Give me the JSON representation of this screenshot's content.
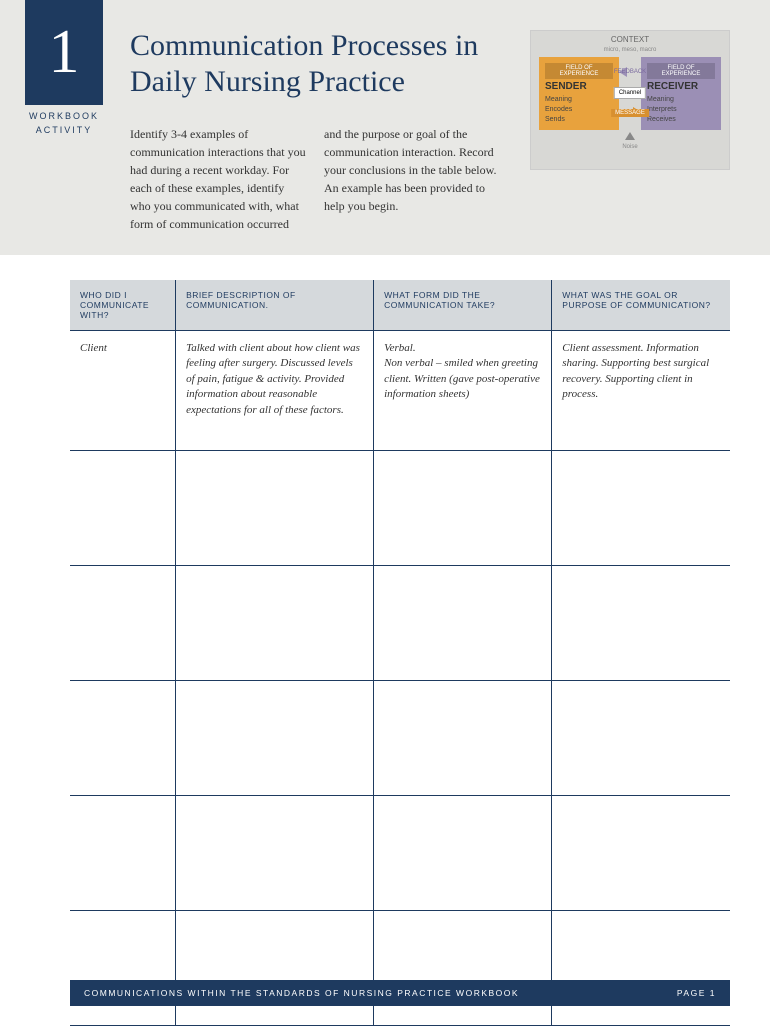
{
  "header": {
    "number": "1",
    "workbook_label_line1": "WORKBOOK",
    "workbook_label_line2": "ACTIVITY",
    "title": "Communication Processes in Daily Nursing Practice",
    "intro": "Identify 3-4 examples of communication interactions that you had during a recent workday. For each of these examples, identify who you communicated with, what form of communication occurred and the purpose or goal of the communication interaction. Record your conclusions in the table below. An example has been provided to help you begin."
  },
  "diagram": {
    "context": "CONTEXT",
    "context_sub": "micro, meso, macro",
    "sender_header": "FIELD OF EXPERIENCE",
    "sender_title": "SENDER",
    "sender_items": "Meaning\nEncodes\nSends",
    "receiver_header": "FIELD OF EXPERIENCE",
    "receiver_title": "RECEIVER",
    "receiver_items": "Meaning\nInterprets\nReceives",
    "feedback": "FEEDBACK",
    "channel": "Channel",
    "message": "MESSAGE",
    "noise": "Noise",
    "colors": {
      "sender_bg": "#e8a23d",
      "receiver_bg": "#9b8fb5",
      "diagram_bg": "#d8d8d5",
      "message_bg": "#d89030"
    }
  },
  "table": {
    "headers": {
      "col1": "WHO DID I COMMUNICATE WITH?",
      "col2": "BRIEF DESCRIPTION OF COMMUNICATION.",
      "col3": "WHAT FORM DID THE COMMUNICATION TAKE?",
      "col4": "WHAT WAS THE GOAL OR PURPOSE OF COMMUNICATION?"
    },
    "example_row": {
      "col1": "Client",
      "col2": "Talked with client about how client was feeling after surgery. Discussed levels of pain, fatigue & activity. Provided information about reasonable expectations for all of these factors.",
      "col3": "Verbal.\nNon verbal – smiled when greeting client. Written (gave post-operative information sheets)",
      "col4": "Client assessment. Information sharing. Supporting best surgical recovery. Supporting client in process."
    },
    "blank_rows": 5,
    "header_bg": "#d5d9dc",
    "border_color": "#1e3a5f"
  },
  "footer": {
    "text": "COMMUNICATIONS WITHIN THE STANDARDS OF NURSING PRACTICE WORKBOOK",
    "page_label": "PAGE",
    "page_number": "1",
    "bg_color": "#1e3a5f"
  },
  "colors": {
    "primary": "#1e3a5f",
    "header_bg": "#e8e8e5"
  }
}
